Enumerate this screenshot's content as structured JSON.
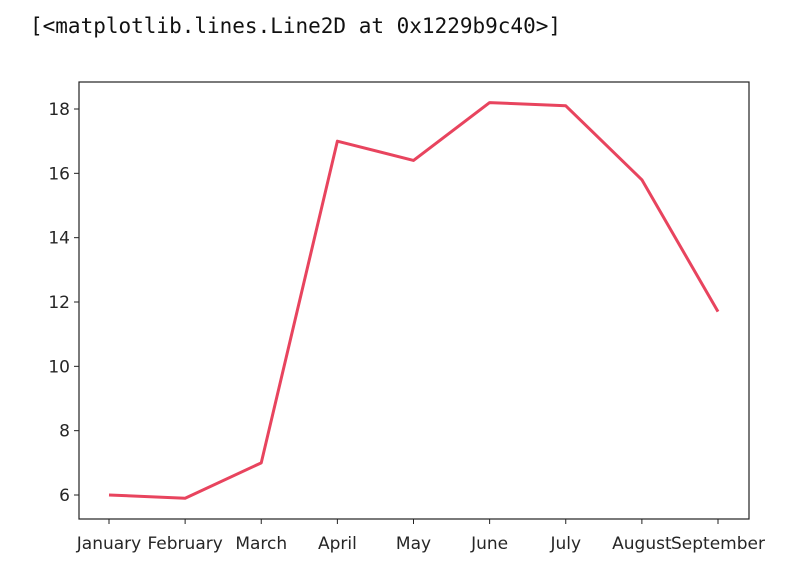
{
  "output_text": "[<matplotlib.lines.Line2D at 0x1229b9c40>]",
  "chart_data": {
    "type": "line",
    "categories": [
      "January",
      "February",
      "March",
      "April",
      "May",
      "June",
      "July",
      "August",
      "September"
    ],
    "values": [
      6.0,
      5.9,
      7.0,
      17.0,
      16.4,
      18.2,
      18.1,
      15.8,
      11.7
    ],
    "title": "",
    "xlabel": "",
    "ylabel": "",
    "ylim": [
      5.3,
      18.8
    ],
    "yticks": [
      6,
      8,
      10,
      12,
      14,
      16,
      18
    ],
    "grid": false,
    "line_color": "#e8445e"
  }
}
